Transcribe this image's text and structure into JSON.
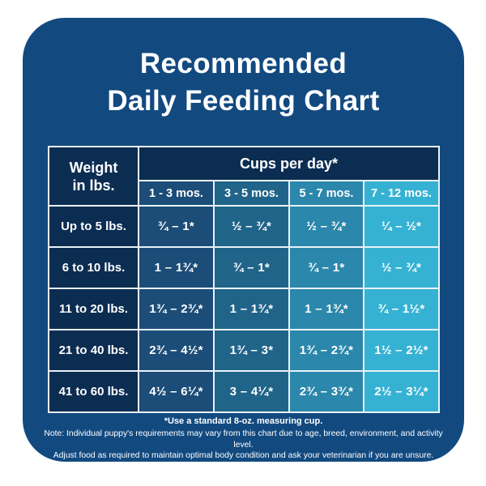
{
  "title": {
    "line1": "Recommended",
    "line2": "Daily Feeding Chart"
  },
  "table": {
    "weight_header": "Weight\nin lbs.",
    "cups_header": "Cups per day*",
    "age_columns": [
      "1 - 3 mos.",
      "3 - 5 mos.",
      "5 - 7 mos.",
      "7 - 12 mos."
    ],
    "rows": [
      {
        "weight": "Up to 5 lbs.",
        "values": [
          "¾ – 1*",
          "½ – ¾*",
          "½ – ¾*",
          "¼ – ½*"
        ]
      },
      {
        "weight": "6 to 10 lbs.",
        "values": [
          "1 – 1¾*",
          "¾ – 1*",
          "¾ – 1*",
          "½ – ¾*"
        ]
      },
      {
        "weight": "11 to 20 lbs.",
        "values": [
          "1¾ – 2¾*",
          "1 – 1¾*",
          "1 – 1¾*",
          "¾ – 1½*"
        ]
      },
      {
        "weight": "21 to 40 lbs.",
        "values": [
          "2¾ – 4½*",
          "1¾ – 3*",
          "1¾ – 2¾*",
          "1½ – 2½*"
        ]
      },
      {
        "weight": "41 to 60 lbs.",
        "values": [
          "4½ – 6¼*",
          "3 – 4¼*",
          "2¾ – 3¾*",
          "2½ – 3¼*"
        ]
      }
    ]
  },
  "footnotes": {
    "measuring_cup": "*Use a standard 8-oz. measuring cup.",
    "note_line1": "Note: Individual puppy's requirements may vary from this chart due to age, breed, environment, and activity level.",
    "note_line2": "Adjust food as required to maintain optimal body condition and ask your veterinarian if you are unsure."
  },
  "colors": {
    "card_background": "#124a80",
    "header_navy": "#0c2d52",
    "column_1_3_mos": "#1b4d78",
    "column_3_5_mos": "#20648a",
    "column_5_7_mos": "#2b87ab",
    "column_7_12_mos": "#35b2d3",
    "grid_border": "#e9f2f8",
    "text": "#ffffff"
  },
  "chart_data": {
    "type": "table",
    "title": "Recommended Daily Feeding Chart",
    "column_group_header": "Cups per day*",
    "columns": [
      "Weight in lbs.",
      "1 - 3 mos.",
      "3 - 5 mos.",
      "5 - 7 mos.",
      "7 - 12 mos."
    ],
    "rows": [
      [
        "Up to 5 lbs.",
        "¾ – 1*",
        "½ – ¾*",
        "½ – ¾*",
        "¼ – ½*"
      ],
      [
        "6 to 10 lbs.",
        "1 – 1¾*",
        "¾ – 1*",
        "¾ – 1*",
        "½ – ¾*"
      ],
      [
        "11 to 20 lbs.",
        "1¾ – 2¾*",
        "1 – 1¾*",
        "1 – 1¾*",
        "¾ – 1½*"
      ],
      [
        "21 to 40 lbs.",
        "2¾ – 4½*",
        "1¾ – 3*",
        "1¾ – 2¾*",
        "1½ – 2½*"
      ],
      [
        "41 to 60 lbs.",
        "4½ – 6¼*",
        "3 – 4¼*",
        "2¾ – 3¾*",
        "2½ – 3¼*"
      ]
    ],
    "footnote": "*Use a standard 8-oz. measuring cup."
  }
}
